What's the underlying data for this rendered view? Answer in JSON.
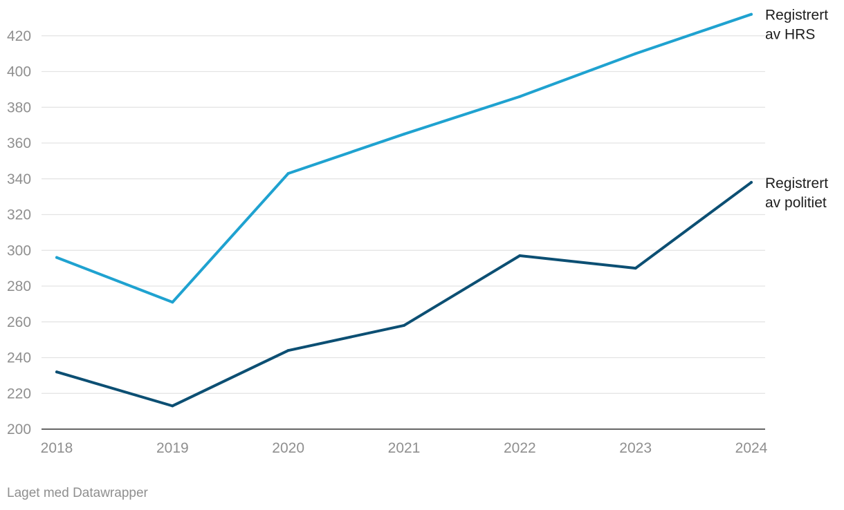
{
  "chart_data": {
    "type": "line",
    "x": [
      "2018",
      "2019",
      "2020",
      "2021",
      "2022",
      "2023",
      "2024"
    ],
    "ylim": [
      200,
      430
    ],
    "yticks": [
      200,
      220,
      240,
      260,
      280,
      300,
      320,
      340,
      360,
      380,
      400,
      420
    ],
    "grid": true,
    "legend": "inline-right",
    "series": [
      {
        "name": "Registrert av HRS",
        "label_lines": [
          "Registrert",
          "av HRS"
        ],
        "color": "#1fa2d0",
        "values": [
          296,
          271,
          343,
          365,
          386,
          410,
          432
        ]
      },
      {
        "name": "Registrert av politiet",
        "label_lines": [
          "Registrert",
          "av politiet"
        ],
        "color": "#0c4f73",
        "values": [
          232,
          213,
          244,
          258,
          297,
          290,
          338
        ]
      }
    ]
  },
  "footer": {
    "credit": "Laget med Datawrapper"
  }
}
